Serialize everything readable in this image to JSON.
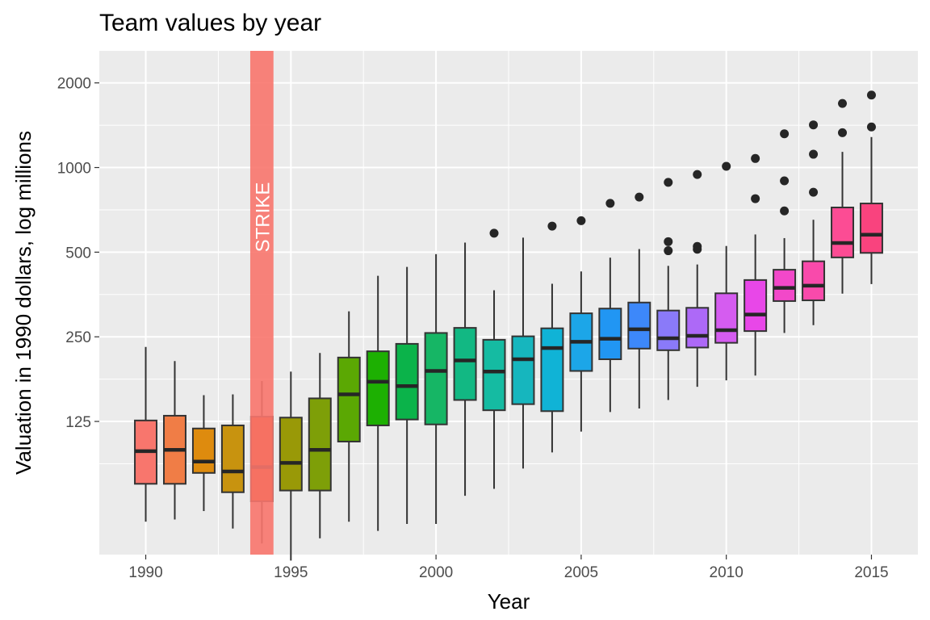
{
  "chart_data": {
    "type": "box",
    "title": "Team values by year",
    "xlabel": "Year",
    "ylabel": "Valuation in 1990 dollars, log millions",
    "y_scale": "log",
    "ylim": [
      42,
      2600
    ],
    "xlim": [
      1988.4,
      2016.6
    ],
    "x_ticks": [
      1990,
      1995,
      2000,
      2005,
      2010,
      2015
    ],
    "y_ticks": [
      125,
      250,
      500,
      1000,
      2000
    ],
    "legend": "none",
    "grid": true,
    "annotation": {
      "label": "STRIKE",
      "x_start": 1993.6,
      "x_end": 1994.4,
      "color": "#F8766D"
    },
    "boxes": [
      {
        "year": 1990,
        "min": 55,
        "q1": 75,
        "median": 98,
        "q3": 126,
        "max": 230,
        "outliers": [],
        "color": "#F8766D"
      },
      {
        "year": 1991,
        "min": 56,
        "q1": 75,
        "median": 99,
        "q3": 131,
        "max": 205,
        "outliers": [],
        "color": "#F07D46"
      },
      {
        "year": 1992,
        "min": 60,
        "q1": 82,
        "median": 90,
        "q3": 118,
        "max": 155,
        "outliers": [],
        "color": "#DE8B0E"
      },
      {
        "year": 1993,
        "min": 52,
        "q1": 70,
        "median": 83,
        "q3": 121,
        "max": 156,
        "outliers": [],
        "color": "#C8930F"
      },
      {
        "year": 1994,
        "min": 46,
        "q1": 65,
        "median": 86,
        "q3": 130,
        "max": 174,
        "outliers": [],
        "color": "#D94A06"
      },
      {
        "year": 1995,
        "min": 40,
        "q1": 71,
        "median": 89,
        "q3": 129,
        "max": 188,
        "outliers": [],
        "color": "#999907"
      },
      {
        "year": 1996,
        "min": 48,
        "q1": 71,
        "median": 99,
        "q3": 151,
        "max": 219,
        "outliers": [],
        "color": "#7E9F08"
      },
      {
        "year": 1997,
        "min": 55,
        "q1": 106,
        "median": 156,
        "q3": 211,
        "max": 308,
        "outliers": [],
        "color": "#5BA803"
      },
      {
        "year": 1998,
        "min": 51,
        "q1": 121,
        "median": 173,
        "q3": 222,
        "max": 412,
        "outliers": [],
        "color": "#1DB002"
      },
      {
        "year": 1999,
        "min": 54,
        "q1": 127,
        "median": 167,
        "q3": 236,
        "max": 443,
        "outliers": [],
        "color": "#0BB34A"
      },
      {
        "year": 2000,
        "min": 54,
        "q1": 122,
        "median": 189,
        "q3": 258,
        "max": 492,
        "outliers": [],
        "color": "#16B665"
      },
      {
        "year": 2001,
        "min": 68,
        "q1": 149,
        "median": 206,
        "q3": 269,
        "max": 541,
        "outliers": [],
        "color": "#12B883"
      },
      {
        "year": 2002,
        "min": 72,
        "q1": 137,
        "median": 188,
        "q3": 244,
        "max": 366,
        "outliers": [
          584
        ],
        "color": "#15BBA2"
      },
      {
        "year": 2003,
        "min": 85,
        "q1": 144,
        "median": 208,
        "q3": 251,
        "max": 563,
        "outliers": [],
        "color": "#16B6BE"
      },
      {
        "year": 2004,
        "min": 97,
        "q1": 136,
        "median": 228,
        "q3": 268,
        "max": 386,
        "outliers": [
          619
        ],
        "color": "#10B3D6"
      },
      {
        "year": 2005,
        "min": 115,
        "q1": 189,
        "median": 240,
        "q3": 303,
        "max": 427,
        "outliers": [
          647
        ],
        "color": "#1CA6E8"
      },
      {
        "year": 2006,
        "min": 135,
        "q1": 208,
        "median": 246,
        "q3": 315,
        "max": 478,
        "outliers": [
          746
        ],
        "color": "#2196F3"
      },
      {
        "year": 2007,
        "min": 139,
        "q1": 227,
        "median": 266,
        "q3": 331,
        "max": 513,
        "outliers": [
          785
        ],
        "color": "#3D88FA"
      },
      {
        "year": 2008,
        "min": 149,
        "q1": 224,
        "median": 247,
        "q3": 310,
        "max": 447,
        "outliers": [
          506,
          545,
          886
        ],
        "color": "#8A7AF9"
      },
      {
        "year": 2009,
        "min": 166,
        "q1": 229,
        "median": 252,
        "q3": 317,
        "max": 452,
        "outliers": [
          512,
          524,
          945
        ],
        "color": "#AD69F7"
      },
      {
        "year": 2010,
        "min": 175,
        "q1": 238,
        "median": 264,
        "q3": 357,
        "max": 526,
        "outliers": [
          1010
        ],
        "color": "#D55CF0"
      },
      {
        "year": 2011,
        "min": 182,
        "q1": 262,
        "median": 300,
        "q3": 398,
        "max": 578,
        "outliers": [
          775,
          1077
        ],
        "color": "#E847E8"
      },
      {
        "year": 2012,
        "min": 258,
        "q1": 335,
        "median": 373,
        "q3": 433,
        "max": 561,
        "outliers": [
          701,
          897,
          1318
        ],
        "color": "#F248C9"
      },
      {
        "year": 2013,
        "min": 275,
        "q1": 337,
        "median": 380,
        "q3": 464,
        "max": 652,
        "outliers": [
          817,
          1115,
          1418
        ],
        "color": "#F94AAB"
      },
      {
        "year": 2014,
        "min": 356,
        "q1": 479,
        "median": 539,
        "q3": 721,
        "max": 1137,
        "outliers": [
          1330,
          1690
        ],
        "color": "#FC4C94"
      },
      {
        "year": 2015,
        "min": 385,
        "q1": 497,
        "median": 577,
        "q3": 745,
        "max": 1284,
        "outliers": [
          1394,
          1810
        ],
        "color": "#F9437E"
      }
    ]
  }
}
